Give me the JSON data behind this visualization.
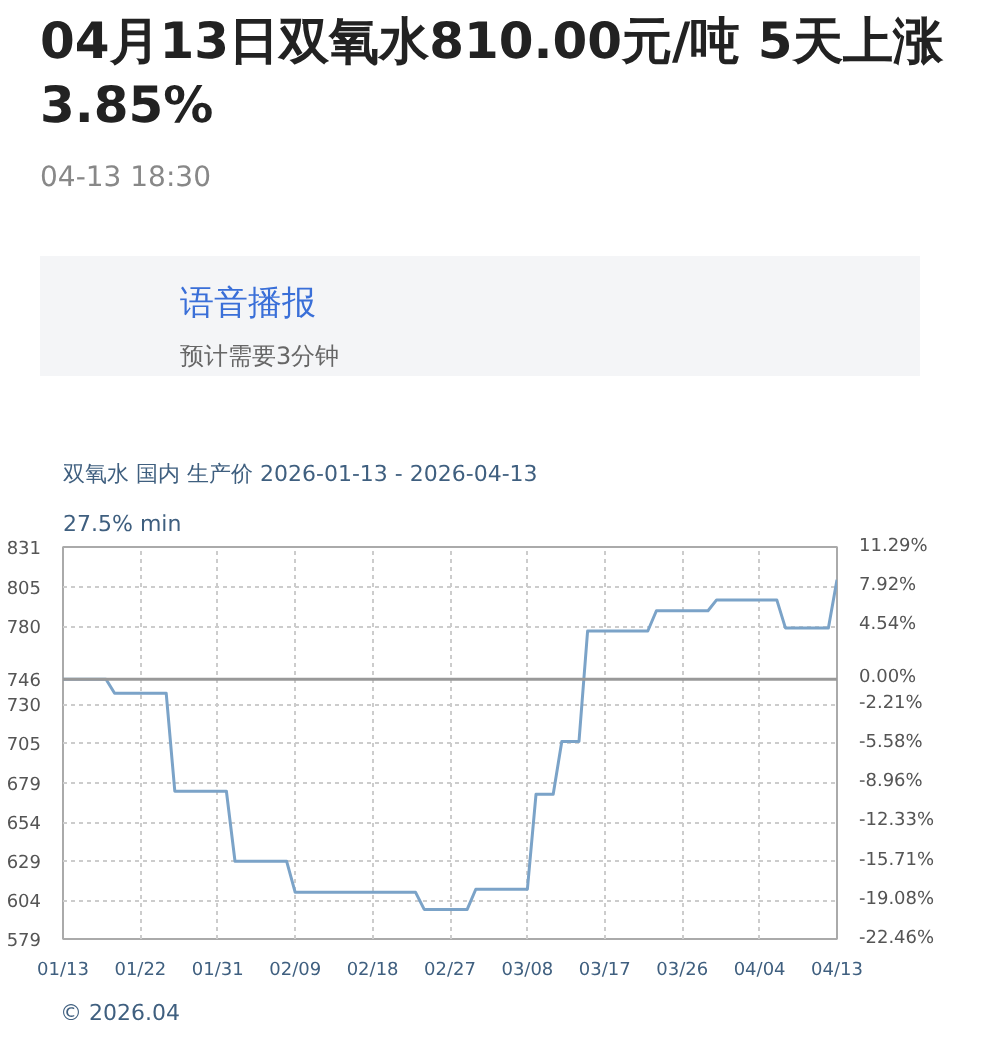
{
  "chart_data": {
    "type": "line",
    "title": "04月13日双氧水810.00元/吨 5天上涨3.85%",
    "subtitle": "04-13 18:30",
    "annotations": [
      "语音播报",
      "预计需要3分钟",
      "双氧水 国内 生产价 2026-01-13 - 2026-04-13",
      "27.5% min",
      "© 2026.04"
    ],
    "x": [
      "2026-01-13",
      "2026-01-18",
      "2026-01-19",
      "2026-01-25",
      "2026-01-26",
      "2026-02-01",
      "2026-02-02",
      "2026-02-08",
      "2026-02-09",
      "2026-02-23",
      "2026-02-24",
      "2026-03-01",
      "2026-03-02",
      "2026-03-08",
      "2026-03-09",
      "2026-03-11",
      "2026-03-12",
      "2026-03-14",
      "2026-03-15",
      "2026-03-22",
      "2026-03-23",
      "2026-03-29",
      "2026-03-30",
      "2026-04-06",
      "2026-04-07",
      "2026-04-12",
      "2026-04-13"
    ],
    "series": [
      {
        "color": "#7ba3c8",
        "values": [
          746,
          746,
          737,
          737,
          674,
          674,
          629,
          629,
          609,
          609,
          598,
          598,
          611,
          611,
          672,
          672,
          706,
          706,
          777,
          777,
          790,
          790,
          797,
          797,
          779,
          779,
          810
        ]
      }
    ],
    "xlim": [
      "2026-01-13",
      "2026-04-13"
    ],
    "xticks": [
      {
        "value": "2026-01-13",
        "label": "01/13"
      },
      {
        "value": "2026-01-22",
        "label": "01/22"
      },
      {
        "value": "2026-01-31",
        "label": "01/31"
      },
      {
        "value": "2026-02-09",
        "label": "02/09"
      },
      {
        "value": "2026-02-18",
        "label": "02/18"
      },
      {
        "value": "2026-02-27",
        "label": "02/27"
      },
      {
        "value": "2026-03-08",
        "label": "03/08"
      },
      {
        "value": "2026-03-17",
        "label": "03/17"
      },
      {
        "value": "2026-03-26",
        "label": "03/26"
      },
      {
        "value": "2026-04-04",
        "label": "04/04"
      },
      {
        "value": "2026-04-13",
        "label": "04/13"
      }
    ],
    "ylim": [
      579,
      831
    ],
    "yticks": [
      579,
      604,
      629,
      654,
      679,
      705,
      730,
      746,
      780,
      805,
      831
    ],
    "y2lim": [
      -22.46,
      11.29
    ],
    "y2ticks": [
      {
        "value": -22.46,
        "label": "-22.46%"
      },
      {
        "value": -19.08,
        "label": "-19.08%"
      },
      {
        "value": -15.71,
        "label": "-15.71%"
      },
      {
        "value": -12.33,
        "label": "-12.33%"
      },
      {
        "value": -8.96,
        "label": "-8.96%"
      },
      {
        "value": -5.58,
        "label": "-5.58%"
      },
      {
        "value": -2.21,
        "label": "-2.21%"
      },
      {
        "value": 0,
        "label": "0.00%"
      },
      {
        "value": 4.54,
        "label": "4.54%"
      },
      {
        "value": 7.92,
        "label": "7.92%"
      },
      {
        "value": 11.29,
        "label": "11.29%"
      }
    ],
    "ref_lines": [
      {
        "axis": "y",
        "value": 746,
        "color": "#999999"
      }
    ],
    "grid": true
  }
}
